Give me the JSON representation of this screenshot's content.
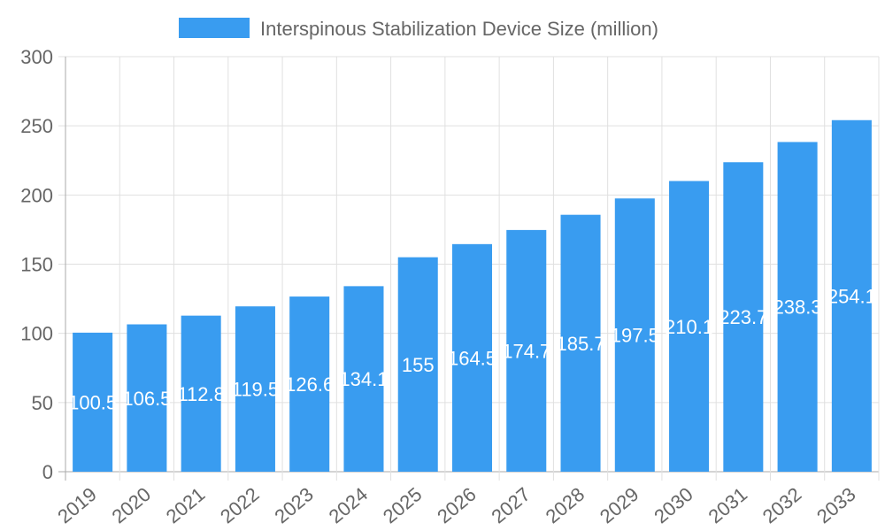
{
  "chart_data": {
    "type": "bar",
    "categories": [
      "2019",
      "2020",
      "2021",
      "2022",
      "2023",
      "2024",
      "2025",
      "2026",
      "2027",
      "2028",
      "2029",
      "2030",
      "2031",
      "2032",
      "2033"
    ],
    "series": [
      {
        "name": "Interspinous Stabilization Device Size (million)",
        "values": [
          100.5,
          106.5,
          112.8,
          119.5,
          126.6,
          134.1,
          155,
          164.5,
          174.7,
          185.7,
          197.5,
          210.1,
          223.7,
          238.3,
          254.1
        ],
        "color": "#399CF0"
      }
    ],
    "ylim": [
      0,
      300
    ],
    "yticks": [
      0,
      50,
      100,
      150,
      200,
      250,
      300
    ],
    "grid": true,
    "legend": "top",
    "data_labels": "inside-center"
  }
}
